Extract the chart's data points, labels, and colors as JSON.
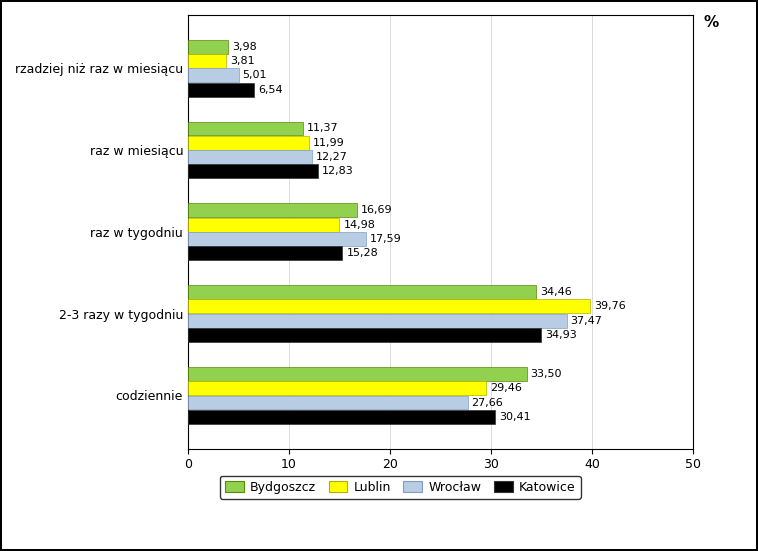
{
  "categories": [
    "codziennie",
    "2-3 razy w tygodniu",
    "raz w tygodniu",
    "raz w miesiącu",
    "rzadziej niż raz w miesiącu"
  ],
  "series": {
    "Bydgoszcz": [
      33.5,
      34.46,
      16.69,
      11.37,
      3.98
    ],
    "Lublin": [
      29.46,
      39.76,
      14.98,
      11.99,
      3.81
    ],
    "Wrocław": [
      27.66,
      37.47,
      17.59,
      12.27,
      5.01
    ],
    "Katowice": [
      30.41,
      34.93,
      15.28,
      12.83,
      6.54
    ]
  },
  "series_order": [
    "Bydgoszcz",
    "Lublin",
    "Wrocław",
    "Katowice"
  ],
  "colors": {
    "Bydgoszcz": "#92d050",
    "Lublin": "#ffff00",
    "Wrocław": "#b8cce4",
    "Katowice": "#000000"
  },
  "edge_colors": {
    "Bydgoszcz": "#5a8a00",
    "Lublin": "#b0b000",
    "Wrocław": "#7f9fbf",
    "Katowice": "#333333"
  },
  "xlim": [
    0,
    50
  ],
  "xticks": [
    0,
    10,
    20,
    30,
    40,
    50
  ],
  "percent_label": "%",
  "figure_bg": "#ffffff",
  "axes_bg": "#ffffff",
  "border_color": "#000000",
  "label_fontsize": 9,
  "tick_fontsize": 9,
  "legend_fontsize": 9,
  "value_fontsize": 8,
  "bar_height": 0.17,
  "bar_spacing": 0.005
}
